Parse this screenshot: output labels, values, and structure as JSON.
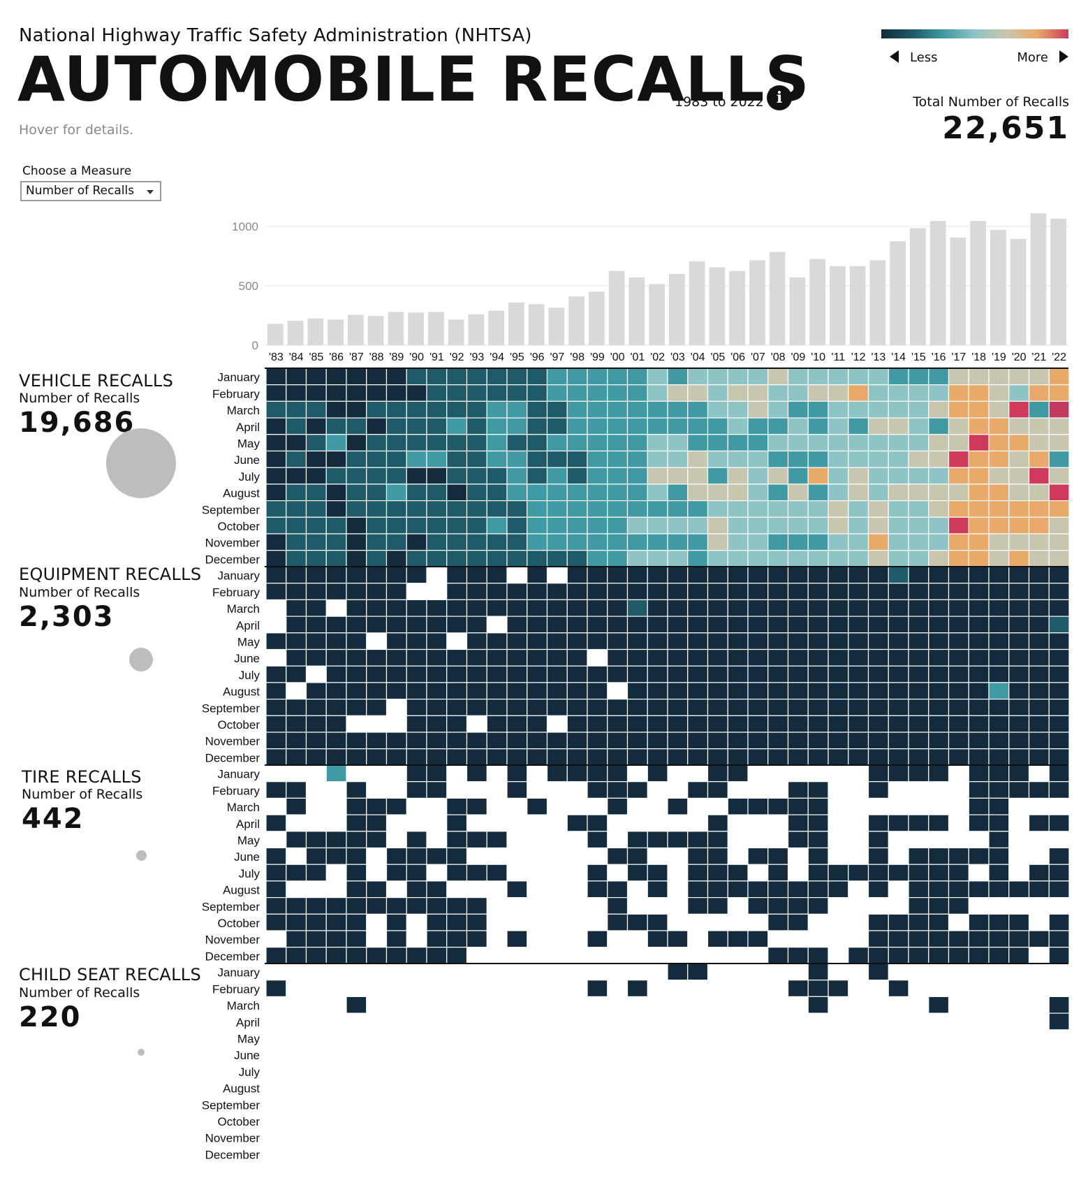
{
  "header": {
    "agency": "National Highway Traffic Safety Administration (NHTSA)",
    "title": "AUTOMOBILE RECALLS",
    "years": "1983 to 2022",
    "info_icon": "i",
    "hover_hint": "Hover for details."
  },
  "legend": {
    "less": "Less",
    "more": "More",
    "colors": [
      "#132b3c",
      "#1f5a68",
      "#3f9aa3",
      "#8ec4c6",
      "#c9c6b0",
      "#e8a96a",
      "#cf3a5c"
    ]
  },
  "total": {
    "label": "Total Number of Recalls",
    "value": "22,651"
  },
  "measure": {
    "label": "Choose a Measure",
    "selected": "Number of Recalls"
  },
  "categories": [
    {
      "name": "VEHICLE RECALLS",
      "measure": "Number of Recalls",
      "value": "19,686"
    },
    {
      "name": "EQUIPMENT RECALLS",
      "measure": "Number of Recalls",
      "value": "2,303"
    },
    {
      "name": "TIRE RECALLS",
      "measure": "Number of Recalls",
      "value": "442"
    },
    {
      "name": "CHILD SEAT RECALLS",
      "measure": "Number of Recalls",
      "value": "220"
    }
  ],
  "months": [
    "January",
    "February",
    "March",
    "April",
    "May",
    "June",
    "July",
    "August",
    "September",
    "October",
    "November",
    "December"
  ],
  "chart_data": {
    "type": "bar",
    "title": "",
    "categories": [
      "'83",
      "'84",
      "'85",
      "'86",
      "'87",
      "'88",
      "'89",
      "'90",
      "'91",
      "'92",
      "'93",
      "'94",
      "'95",
      "'96",
      "'97",
      "'98",
      "'99",
      "'00",
      "'01",
      "'02",
      "'03",
      "'04",
      "'05",
      "'06",
      "'07",
      "'08",
      "'09",
      "'10",
      "'11",
      "'12",
      "'13",
      "'14",
      "'15",
      "'16",
      "'17",
      "'18",
      "'19",
      "'20",
      "'21",
      "'22"
    ],
    "values": [
      180,
      205,
      225,
      215,
      255,
      245,
      280,
      275,
      280,
      215,
      260,
      290,
      360,
      345,
      315,
      410,
      450,
      625,
      570,
      515,
      600,
      705,
      655,
      625,
      715,
      785,
      570,
      725,
      665,
      665,
      715,
      875,
      985,
      1045,
      905,
      1045,
      970,
      895,
      1110,
      1065
    ],
    "yticks": [
      0,
      500,
      1000
    ],
    "ylim": [
      0,
      1130
    ],
    "grid": true,
    "heatmap_rows": [
      "January",
      "February",
      "March",
      "April",
      "May",
      "June",
      "July",
      "August",
      "September",
      "October",
      "November",
      "December"
    ],
    "heatmap_groups": [
      "VEHICLE RECALLS",
      "EQUIPMENT RECALLS",
      "TIRE RECALLS",
      "CHILD SEAT RECALLS"
    ],
    "heatmap_scale": "0 = no recalls, 1-7 = Less to More",
    "heatmap": [
      [
        "1111111222222233333434444544444333555556",
        "1111111122222233333455455445564444665466",
        "2221122222233223333333445433444445665738",
        "1212212223233223333333343343435543566555",
        "1123122222232233333443333444444445576655",
        "1211222332233222333445444333444455766563",
        "1112222112223232333555354536454444665575",
        "1221223221223333333435554353454555566557",
        "2221222222222333333333444444545445666666",
        "2222122222232333334444544444545444766665",
        "1222122122222333333333544333446444665555",
        "1222121222222222334443444444445445665655"
      ],
      [
        "1111111101110101111111111111111211111111",
        "1111111001111111111111111111111111111111",
        "0110111111111111112111111111111111111111",
        "0111111111101111111111111111111111111112",
        "1111101110111111111111111111111111111111",
        "0111111111111111011111111111111111111111",
        "1101111111111111111111111111111111111111",
        "1011111111111111101111111111111111113111",
        "1111110111111111111111111111111111111111",
        "1111000111011101111111111111111111111111",
        "1111111111111111111111111111111111111111",
        "1111111111111111111111111111111111111111"
      ],
      [
        "0003000110101011110100110000001111011101",
        "1100100110001000111001100011001000011111",
        "0100111001100100010010011111000000011000",
        "1000110001000001100000100011001111011011",
        "0111110101110000101111100011001000001000",
        "1011101111000000011001101101001011111001",
        "1110101101110000101101110101111111101011",
        "1000110110001000110101111111101011111111",
        "1111111111100000010001101111000011100000",
        "1111101011100000011100000110001111011101",
        "0111101011101000100110111000001111111111",
        "1111111111000000000000000111011111111101"
      ],
      [
        "0000000000000000000011000001001000000000",
        "1000000000000000101000000011100100000000",
        "0000100000000000000000000001000001000001",
        "0000000000000000000000000000000000000001",
        "0000000000000000000000000000000000000000",
        "0000000000000000000000000000000000000000",
        "0000000000000000000000000000000000000000",
        "0000000000000000000000000000000000000000",
        "0000000000000000000000000000000000000000",
        "0000000000000000000000000000000000000000",
        "0000000000000000000000000000000000000000",
        "0000000000000000000000000000000000000000"
      ]
    ]
  }
}
